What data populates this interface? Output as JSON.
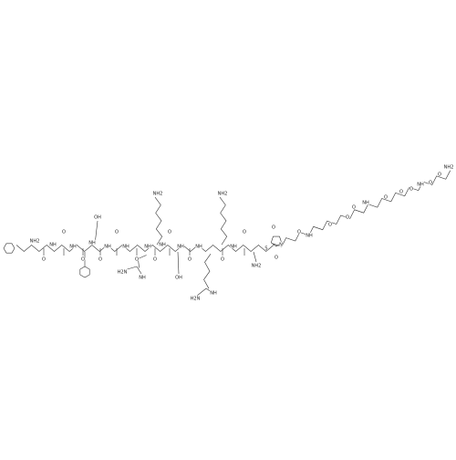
{
  "atoms": [
    "NH2",
    "O",
    "NH",
    "O",
    "NH",
    "O",
    "NH",
    "OH",
    "O",
    "NH",
    "O",
    "NH",
    "O",
    "NH",
    "H2N",
    "NH",
    "NH2",
    "O",
    "NH",
    "OH",
    "O",
    "NH",
    "O",
    "NH",
    "H2N",
    "NH",
    "NH2",
    "O",
    "NH",
    "O",
    "NH2",
    "S",
    "O",
    "N",
    "O",
    "O",
    "NH",
    "O",
    "O",
    "O",
    "NH",
    "O",
    "O",
    "O",
    "NH",
    "O",
    "O",
    "NH2"
  ]
}
